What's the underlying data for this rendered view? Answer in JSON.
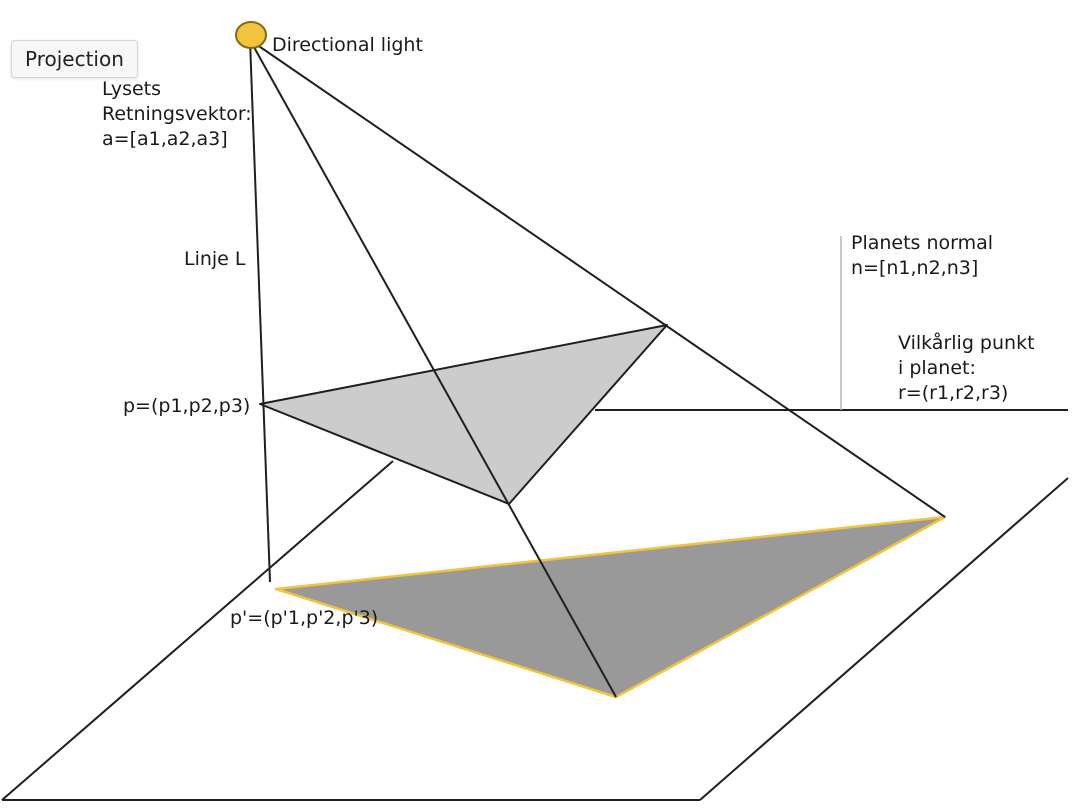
{
  "tooltip": {
    "text": "Projection"
  },
  "labels": {
    "light": "Directional light",
    "direction_l1": "Lysets",
    "direction_l2": "Retningsvektor:",
    "direction_l3": "a=[a1,a2,a3]",
    "line": "Linje L",
    "normal_l1": "Planets normal",
    "normal_l2": "n=[n1,n2,n3]",
    "point_l1": "Vilkårlig punkt",
    "point_l2": "i planet:",
    "point_l3": "r=(r1,r2,r3)",
    "p": "p=(p1,p2,p3)",
    "p_prime": "p'=(p'1,p'2,p'3)"
  },
  "colors": {
    "light_source": "#f2c43d",
    "light_outline": "#8a6a10",
    "object_triangle": "#cccccc",
    "shadow_triangle": "#999999",
    "shadow_outline": "#f2c43d",
    "lines": "#1f1f1f",
    "normal_line": "#b5b5b5"
  }
}
